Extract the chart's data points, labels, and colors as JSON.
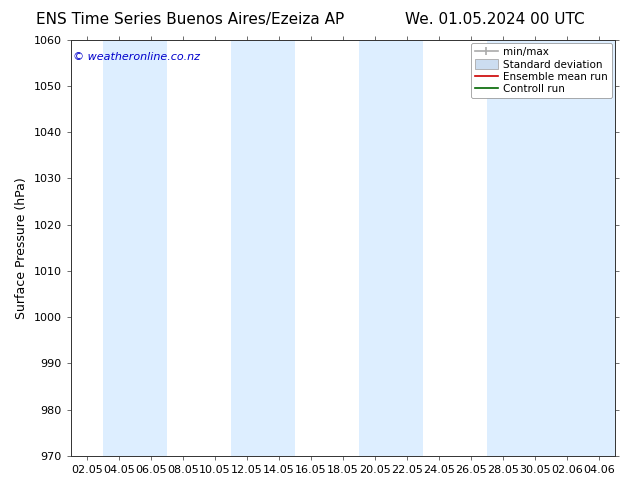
{
  "title_left": "ENS Time Series Buenos Aires/Ezeiza AP",
  "title_right": "We. 01.05.2024 00 UTC",
  "ylabel": "Surface Pressure (hPa)",
  "ylim": [
    970,
    1060
  ],
  "yticks": [
    970,
    980,
    990,
    1000,
    1010,
    1020,
    1030,
    1040,
    1050,
    1060
  ],
  "xtick_labels": [
    "02.05",
    "04.05",
    "06.05",
    "08.05",
    "10.05",
    "12.05",
    "14.05",
    "16.05",
    "18.05",
    "20.05",
    "22.05",
    "24.05",
    "26.05",
    "28.05",
    "30.05",
    "02.06",
    "04.06"
  ],
  "watermark": "© weatheronline.co.nz",
  "watermark_color": "#0000cc",
  "bg_color": "#ffffff",
  "band_color": "#ddeeff",
  "legend_labels": [
    "min/max",
    "Standard deviation",
    "Ensemble mean run",
    "Controll run"
  ],
  "title_fontsize": 11,
  "label_fontsize": 9,
  "tick_fontsize": 8,
  "watermark_fontsize": 8
}
